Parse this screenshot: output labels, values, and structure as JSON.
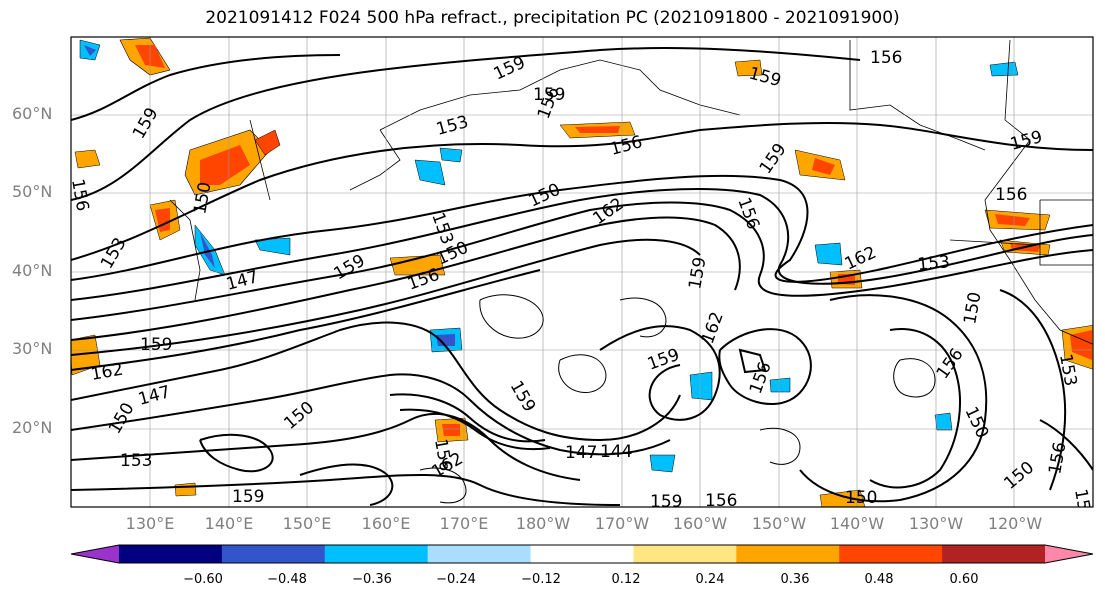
{
  "title": "2021091412 F024 500 hPa refract., precipitation PC (2021091800 - 2021091900)",
  "axes": {
    "lat_labels": [
      "60°N",
      "50°N",
      "40°N",
      "30°N",
      "20°N"
    ],
    "lon_labels": [
      "130°E",
      "140°E",
      "150°E",
      "160°E",
      "170°E",
      "180°W",
      "170°W",
      "160°W",
      "150°W",
      "140°W",
      "130°W",
      "120°W"
    ]
  },
  "contour_labels": [
    "159",
    "159",
    "156",
    "159",
    "156",
    "159",
    "153",
    "159",
    "156",
    "159",
    "156",
    "150",
    "156",
    "162",
    "153",
    "156",
    "150",
    "159",
    "150",
    "156",
    "153",
    "147",
    "159",
    "162",
    "153",
    "150",
    "159",
    "162",
    "159",
    "162",
    "147",
    "156",
    "159",
    "156",
    "150",
    "150",
    "156",
    "150",
    "147",
    "144",
    "153"
  ],
  "colorbar": {
    "tick_labels": [
      "−0.60",
      "−0.48",
      "−0.36",
      "−0.24",
      "−0.12",
      "0.12",
      "0.24",
      "0.36",
      "0.48",
      "0.60"
    ],
    "colors": [
      "#9933cc",
      "#000080",
      "#3355cc",
      "#00bfff",
      "#aadeff",
      "#ffffff",
      "#ffe680",
      "#ffa500",
      "#ff4500",
      "#b22222",
      "#ff88aa"
    ]
  }
}
